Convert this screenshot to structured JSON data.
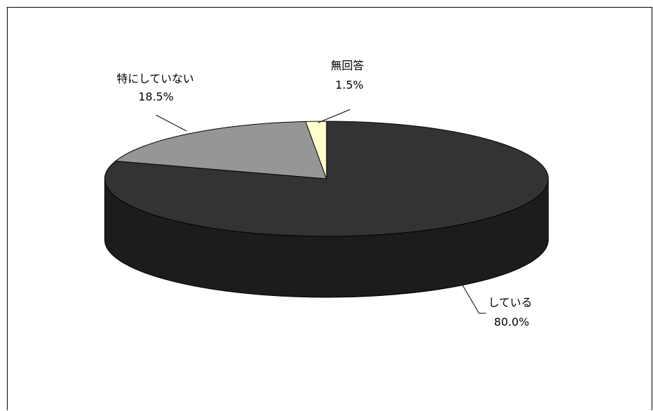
{
  "chart_data": {
    "type": "pie",
    "style": "3d",
    "title": "",
    "slices": [
      {
        "label": "している",
        "value": 80.0,
        "value_label": "80.0%",
        "color": "#333333",
        "side_color": "#1c1c1c"
      },
      {
        "label": "特にしていない",
        "value": 18.5,
        "value_label": "18.5%",
        "color": "#969696",
        "side_color": "#6e6e6e"
      },
      {
        "label": "無回答",
        "value": 1.5,
        "value_label": "1.5%",
        "color": "#ffffcc",
        "side_color": "#d8d8a8"
      }
    ]
  }
}
